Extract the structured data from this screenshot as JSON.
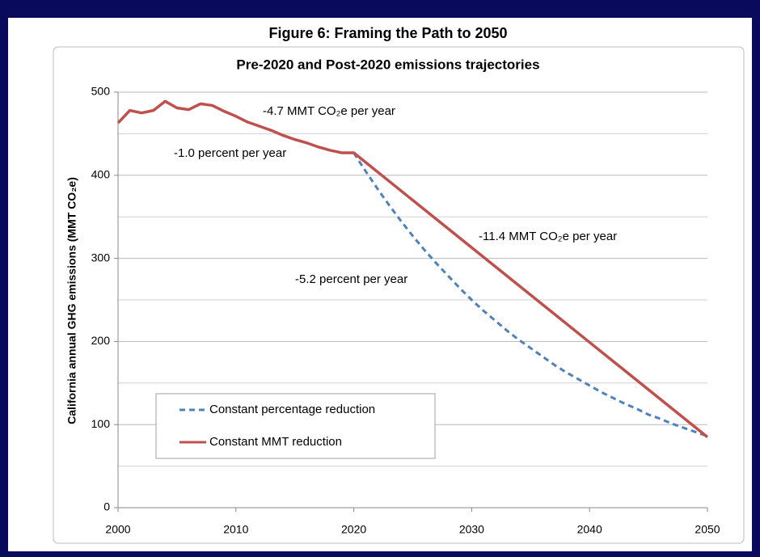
{
  "chart_data": {
    "type": "line",
    "title": "Figure 6:  Framing the Path to 2050",
    "subtitle": "Pre-2020 and Post-2020 emissions trajectories",
    "y_label": "California annual GHG emissions (MMT CO₂e)",
    "xlim": [
      2000,
      2050
    ],
    "xticks": [
      2000,
      2010,
      2020,
      2030,
      2040,
      2050
    ],
    "ylim": [
      0,
      500
    ],
    "yticks": [
      0,
      100,
      200,
      300,
      400,
      500
    ],
    "minor_yticks": [
      50,
      150,
      250,
      350,
      450
    ],
    "grid": true,
    "legend": "lower left",
    "annotations": [
      "-4.7 MMT CO₂e per year",
      "-1.0 percent per year",
      "-11.4 MMT CO₂e per year",
      "-5.2 percent per year"
    ],
    "series": [
      {
        "name": "Constant percentage reduction",
        "color": "#4f81bd",
        "dashed": true,
        "x": [
          2020,
          2021,
          2022,
          2023,
          2024,
          2025,
          2026,
          2027,
          2028,
          2029,
          2030,
          2031,
          2032,
          2033,
          2034,
          2035,
          2036,
          2037,
          2038,
          2039,
          2040,
          2041,
          2042,
          2043,
          2044,
          2045,
          2046,
          2047,
          2048,
          2049,
          2050
        ],
        "values": [
          427,
          405,
          384,
          364,
          345,
          327,
          310,
          294,
          279,
          264,
          250,
          237,
          225,
          213,
          202,
          192,
          182,
          172,
          163,
          155,
          147,
          139,
          132,
          125,
          119,
          112,
          107,
          101,
          96,
          91,
          86
        ]
      },
      {
        "name": "Constant MMT reduction",
        "color": "#c0504d",
        "dashed": false,
        "x": [
          2000,
          2001,
          2002,
          2003,
          2004,
          2005,
          2006,
          2007,
          2008,
          2009,
          2010,
          2011,
          2012,
          2013,
          2014,
          2015,
          2016,
          2017,
          2018,
          2019,
          2020,
          2030,
          2040,
          2050
        ],
        "values": [
          463,
          478,
          475,
          478,
          489,
          481,
          479,
          486,
          484,
          477,
          471,
          464,
          459,
          454,
          448,
          443,
          439,
          434,
          430,
          427,
          427,
          313,
          199,
          85
        ]
      }
    ]
  }
}
